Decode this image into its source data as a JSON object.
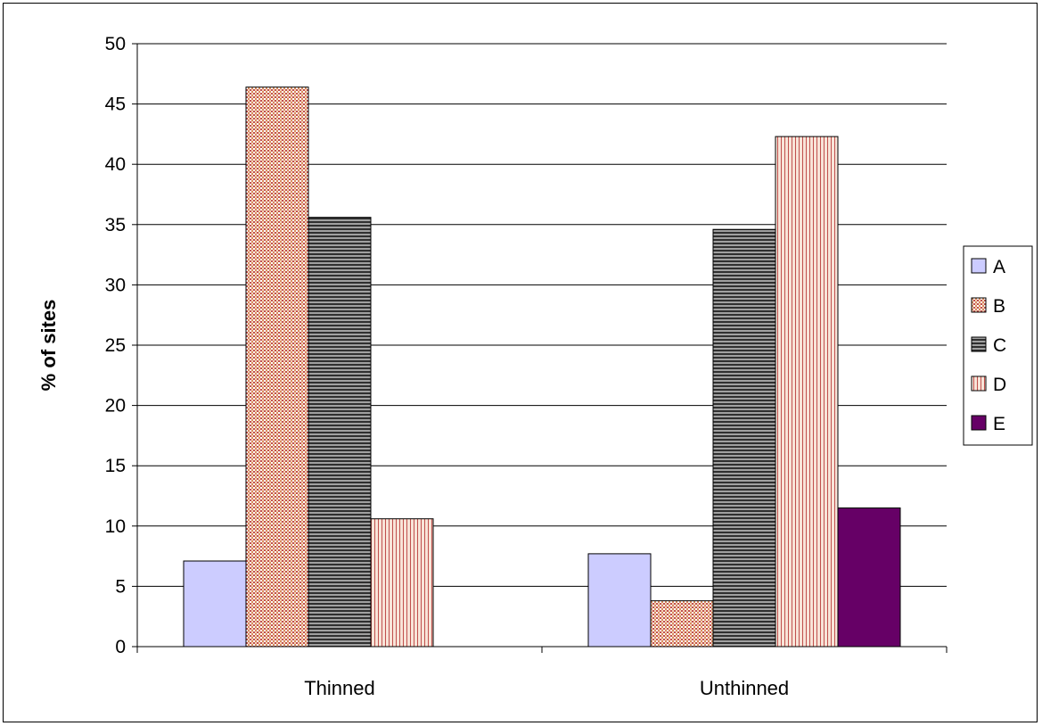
{
  "chart_data": {
    "type": "bar",
    "title": "",
    "xlabel": "",
    "ylabel": "% of sites",
    "ylim": [
      0,
      50
    ],
    "yticks": [
      0,
      5,
      10,
      15,
      20,
      25,
      30,
      35,
      40,
      45,
      50
    ],
    "categories": [
      "Thinned",
      "Unthinned"
    ],
    "grid": "horizontal",
    "legend_position": "right",
    "series": [
      {
        "name": "A",
        "values": [
          7.1,
          7.7
        ],
        "color": "#ccccff",
        "pattern": "solid"
      },
      {
        "name": "B",
        "values": [
          46.4,
          3.8
        ],
        "color": "#c0504d",
        "pattern": "fine-grid"
      },
      {
        "name": "C",
        "values": [
          35.6,
          34.6
        ],
        "color": "#404040",
        "pattern": "horizontal-lines"
      },
      {
        "name": "D",
        "values": [
          10.6,
          42.3
        ],
        "color": "#c0504d",
        "pattern": "vertical-lines"
      },
      {
        "name": "E",
        "values": [
          0,
          11.5
        ],
        "color": "#660066",
        "pattern": "solid"
      }
    ]
  }
}
